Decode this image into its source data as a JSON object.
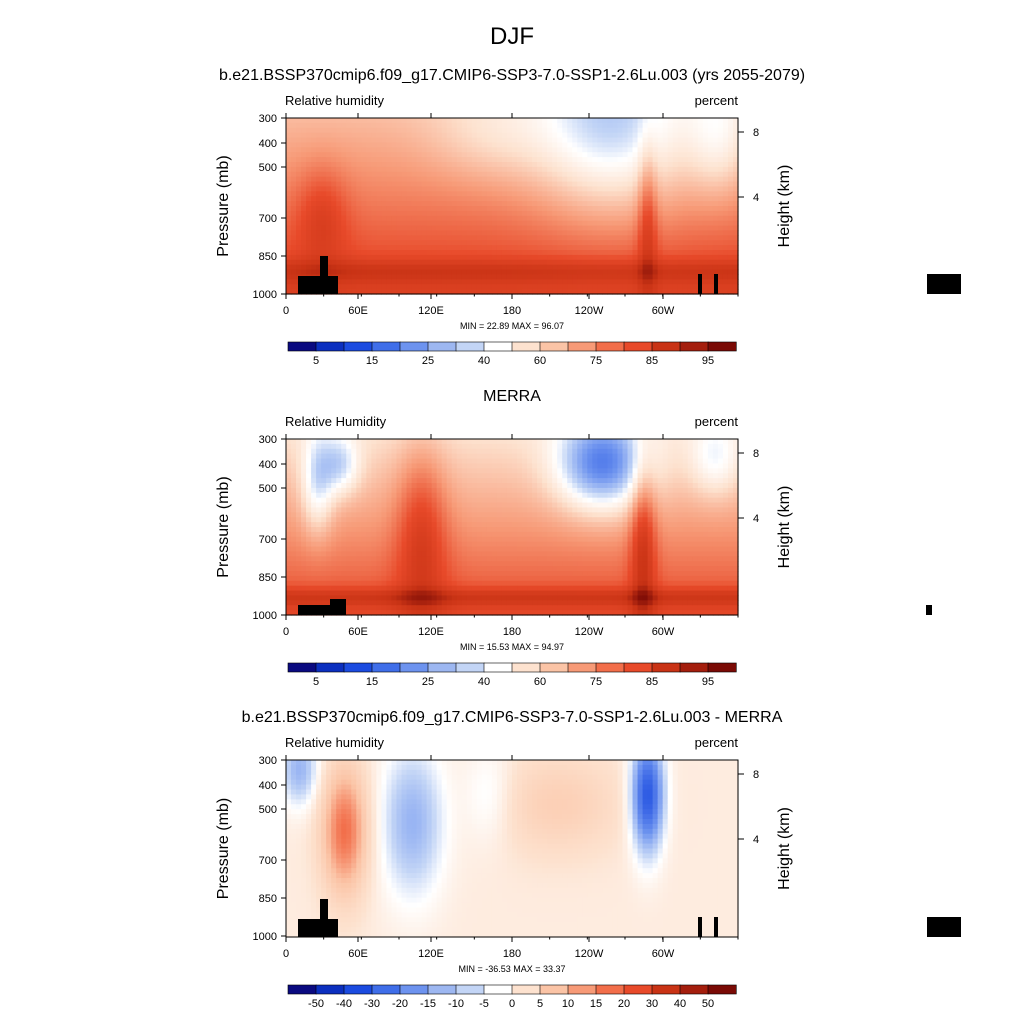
{
  "figure_title": "DJF",
  "chart_data": [
    {
      "type": "contour",
      "title": "b.e21.BSSP370cmip6.f09_g17.CMIP6-SSP3-7.0-SSP1-2.6Lu.003 (yrs 2055-2079)",
      "left_label": "Relative humidity",
      "right_label": "percent",
      "ylabel": "Pressure (mb)",
      "y2label": "Height (km)",
      "pressure_ticks": [
        300,
        400,
        500,
        700,
        850,
        1000
      ],
      "height_ticks": [
        4,
        8
      ],
      "x_ticks": [
        "0",
        "60E",
        "120E",
        "180",
        "120W",
        "60W"
      ],
      "stats_text": "MIN = 22.89  MAX = 96.07",
      "min": 22.89,
      "max": 96.07,
      "colorbar_labels": [
        "5",
        "15",
        "25",
        "40",
        "60",
        "75",
        "85",
        "95"
      ],
      "colorbar_colors": [
        "#0a0a80",
        "#0b2fbf",
        "#1b4be0",
        "#3f6ee9",
        "#6d93ef",
        "#9db7f1",
        "#c3d5f6",
        "#ffffff",
        "#fde2cf",
        "#fbc4a6",
        "#f79a77",
        "#f26e4a",
        "#e84a2a",
        "#c93315",
        "#a41e0d",
        "#7a0a05"
      ],
      "field": "model"
    },
    {
      "type": "contour",
      "title": "MERRA",
      "left_label": "Relative Humidity",
      "right_label": "percent",
      "ylabel": "Pressure (mb)",
      "y2label": "Height (km)",
      "pressure_ticks": [
        300,
        400,
        500,
        700,
        850,
        1000
      ],
      "height_ticks": [
        4,
        8
      ],
      "x_ticks": [
        "0",
        "60E",
        "120E",
        "180",
        "120W",
        "60W"
      ],
      "stats_text": "MIN = 15.53  MAX = 94.97",
      "min": 15.53,
      "max": 94.97,
      "colorbar_labels": [
        "5",
        "15",
        "25",
        "40",
        "60",
        "75",
        "85",
        "95"
      ],
      "colorbar_colors": [
        "#0a0a80",
        "#0b2fbf",
        "#1b4be0",
        "#3f6ee9",
        "#6d93ef",
        "#9db7f1",
        "#c3d5f6",
        "#ffffff",
        "#fde2cf",
        "#fbc4a6",
        "#f79a77",
        "#f26e4a",
        "#e84a2a",
        "#c93315",
        "#a41e0d",
        "#7a0a05"
      ],
      "field": "obs"
    },
    {
      "type": "contour",
      "title": "b.e21.BSSP370cmip6.f09_g17.CMIP6-SSP3-7.0-SSP1-2.6Lu.003 - MERRA",
      "left_label": "Relative humidity",
      "right_label": "percent",
      "ylabel": "Pressure (mb)",
      "y2label": "Height (km)",
      "pressure_ticks": [
        300,
        400,
        500,
        700,
        850,
        1000
      ],
      "height_ticks": [
        4,
        8
      ],
      "x_ticks": [
        "0",
        "60E",
        "120E",
        "180",
        "120W",
        "60W"
      ],
      "stats_text": "MIN = -36.53  MAX = 33.37",
      "min": -36.53,
      "max": 33.37,
      "colorbar_labels": [
        "-50",
        "-40",
        "-30",
        "-20",
        "-15",
        "-10",
        "-5",
        "0",
        "5",
        "10",
        "15",
        "20",
        "30",
        "40",
        "50"
      ],
      "colorbar_colors": [
        "#0a0a80",
        "#0b2fbf",
        "#1b4be0",
        "#3f6ee9",
        "#6d93ef",
        "#9db7f1",
        "#c3d5f6",
        "#ffffff",
        "#fde2cf",
        "#fbc4a6",
        "#f79a77",
        "#f26e4a",
        "#e84a2a",
        "#c93315",
        "#a41e0d",
        "#7a0a05"
      ],
      "field": "diff"
    }
  ]
}
